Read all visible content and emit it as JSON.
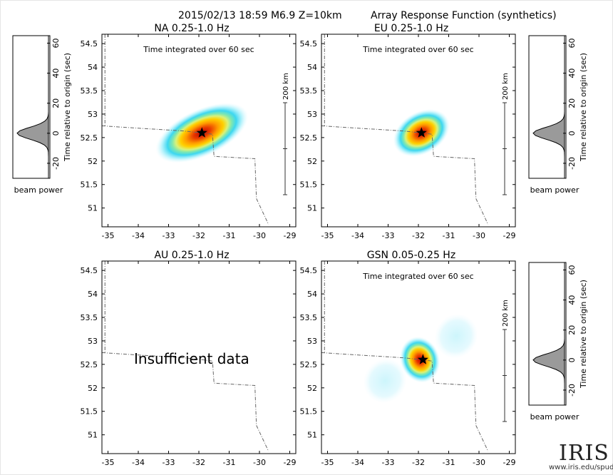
{
  "header": {
    "event": "2015/02/13 18:59  M6.9  Z=10km",
    "title": "Array Response Function (synthetics)"
  },
  "chart_data": [
    {
      "type": "heatmap",
      "title": "NA  0.25-1.0 Hz",
      "subtitle": "Time integrated over 60 sec",
      "xlim": [
        -35.2,
        -28.8
      ],
      "ylim": [
        50.6,
        54.7
      ],
      "xticks": [
        "-35",
        "-34",
        "-33",
        "-32",
        "-31",
        "-30",
        "-29"
      ],
      "yticks": [
        "51",
        "51.5",
        "52",
        "52.5",
        "53",
        "53.5",
        "54",
        "54.5"
      ],
      "epicenter": {
        "lon": -31.9,
        "lat": 52.6
      },
      "peak": {
        "lon": -31.9,
        "lat": 52.6,
        "rx": 1.65,
        "ry": 0.5,
        "rotation_deg": -25
      },
      "side_lobes": [],
      "scale_bar": "200 km",
      "beam_power": {
        "time_axis_label": "Time relative to origin (sec)",
        "time_ticks": [
          "-20",
          "0",
          "20",
          "40",
          "60"
        ],
        "peak_time_sec": 0,
        "xlabel": "beam power"
      }
    },
    {
      "type": "heatmap",
      "title": "EU  0.25-1.0 Hz",
      "subtitle": "Time integrated over 60 sec",
      "xlim": [
        -35.2,
        -28.8
      ],
      "ylim": [
        50.6,
        54.7
      ],
      "xticks": [
        "-35",
        "-34",
        "-33",
        "-32",
        "-31",
        "-30",
        "-29"
      ],
      "yticks": [
        "51",
        "51.5",
        "52",
        "52.5",
        "53",
        "53.5",
        "54",
        "54.5"
      ],
      "epicenter": {
        "lon": -31.9,
        "lat": 52.6
      },
      "peak": {
        "lon": -31.9,
        "lat": 52.6,
        "rx": 1.0,
        "ry": 0.45,
        "rotation_deg": -30
      },
      "side_lobes": [],
      "scale_bar": "200 km",
      "beam_power": {
        "time_axis_label": "Time relative to origin (sec)",
        "time_ticks": [
          "-20",
          "0",
          "20",
          "40",
          "60"
        ],
        "peak_time_sec": 0,
        "xlabel": "beam power"
      }
    },
    {
      "type": "heatmap",
      "title": "AU  0.25-1.0 Hz",
      "subtitle": "",
      "xlim": [
        -35.2,
        -28.8
      ],
      "ylim": [
        50.6,
        54.7
      ],
      "xticks": [
        "-35",
        "-34",
        "-33",
        "-32",
        "-31",
        "-30",
        "-29"
      ],
      "yticks": [
        "51",
        "51.5",
        "52",
        "52.5",
        "53",
        "53.5",
        "54",
        "54.5"
      ],
      "message": "Insufficient data"
    },
    {
      "type": "heatmap",
      "title": "GSN  0.05-0.25 Hz",
      "subtitle": "Time integrated over 60 sec",
      "xlim": [
        -35.2,
        -28.8
      ],
      "ylim": [
        50.6,
        54.7
      ],
      "xticks": [
        "-35",
        "-34",
        "-33",
        "-32",
        "-31",
        "-30",
        "-29"
      ],
      "yticks": [
        "51",
        "51.5",
        "52",
        "52.5",
        "53",
        "53.5",
        "54",
        "54.5"
      ],
      "epicenter": {
        "lon": -31.85,
        "lat": 52.6
      },
      "peak": {
        "lon": -31.95,
        "lat": 52.6,
        "rx": 0.65,
        "ry": 0.5,
        "rotation_deg": -20
      },
      "side_lobes": [
        {
          "lon": -33.1,
          "lat": 52.15,
          "rx": 0.75,
          "ry": 0.45,
          "rotation_deg": -55
        },
        {
          "lon": -30.75,
          "lat": 53.1,
          "rx": 0.75,
          "ry": 0.45,
          "rotation_deg": -55
        }
      ],
      "scale_bar": "200 km",
      "beam_power": {
        "time_axis_label": "Time relative to origin (sec)",
        "time_ticks": [
          "-20",
          "0",
          "20",
          "40",
          "60"
        ],
        "peak_time_sec": 0,
        "xlabel": "beam power"
      }
    }
  ],
  "brand": {
    "name": "IRIS",
    "url": "www.iris.edu/spud"
  },
  "colors": {
    "peak": "#c00000",
    "mid": "#ffd000",
    "outer": "#3cd7f0",
    "border_line": "#666666"
  }
}
